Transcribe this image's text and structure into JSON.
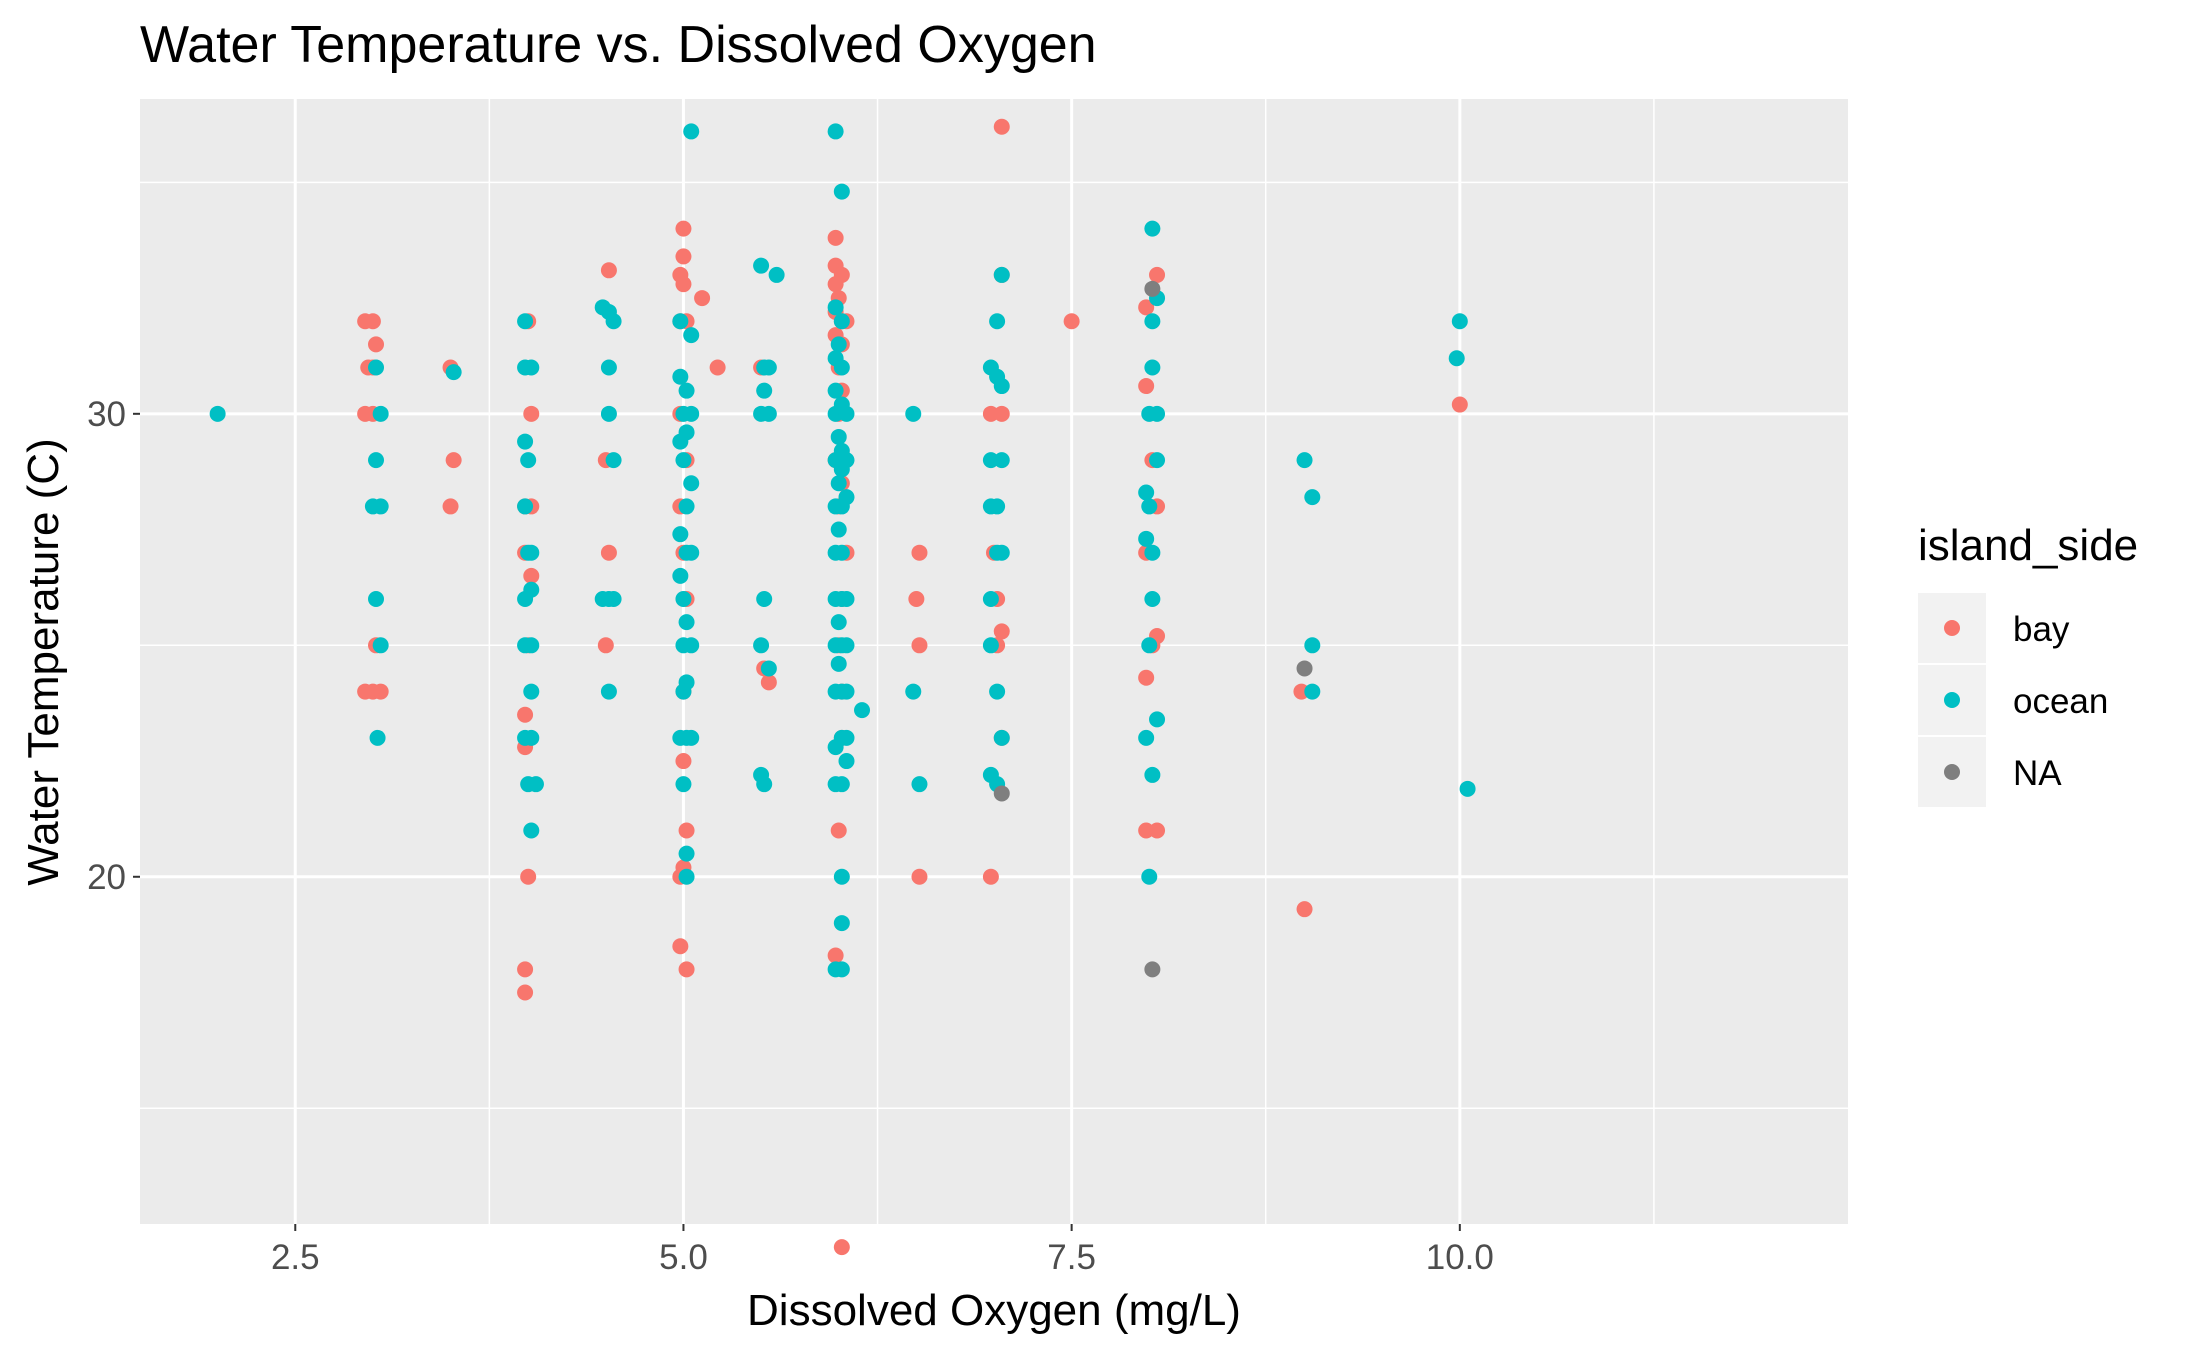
{
  "chart_data": {
    "type": "scatter",
    "title": "Water Temperature vs. Dissolved Oxygen",
    "xlabel": "Dissolved Oxygen (mg/L)",
    "ylabel": "Water Temperature (C)",
    "xlim": [
      1.5,
      12.5
    ],
    "ylim": [
      12.5,
      36.8
    ],
    "x_major_ticks": [
      2.5,
      5.0,
      7.5,
      10.0
    ],
    "x_tick_labels": [
      "2.5",
      "5.0",
      "7.5",
      "10.0"
    ],
    "x_minor_grid": [
      3.75,
      6.25,
      8.75,
      11.25
    ],
    "y_major_ticks": [
      20,
      30
    ],
    "y_tick_labels": [
      "20",
      "30"
    ],
    "y_minor_grid": [
      15,
      25,
      35
    ],
    "grid": true,
    "panel_background": "#ebebeb",
    "grid_color": "#ffffff",
    "legend": {
      "title": "island_side",
      "position": "right",
      "entries": [
        {
          "label": "bay",
          "color": "#F8766D"
        },
        {
          "label": "ocean",
          "color": "#00BFC4"
        },
        {
          "label": "NA",
          "color": "#7F7F7F"
        }
      ]
    },
    "series": [
      {
        "name": "bay",
        "color": "#F8766D",
        "points": [
          [
            2.95,
            32
          ],
          [
            3.0,
            32
          ],
          [
            3.02,
            31.5
          ],
          [
            2.97,
            31
          ],
          [
            3.0,
            31
          ],
          [
            2.95,
            30
          ],
          [
            3.0,
            30
          ],
          [
            3.02,
            25
          ],
          [
            2.95,
            24
          ],
          [
            3.0,
            24
          ],
          [
            3.05,
            24
          ],
          [
            3.5,
            31
          ],
          [
            3.52,
            29
          ],
          [
            3.5,
            28
          ],
          [
            4.0,
            32
          ],
          [
            4.02,
            30
          ],
          [
            3.98,
            28
          ],
          [
            4.02,
            28
          ],
          [
            3.98,
            27
          ],
          [
            4.02,
            26.5
          ],
          [
            4.0,
            25
          ],
          [
            3.98,
            23.5
          ],
          [
            3.98,
            22.8
          ],
          [
            4.0,
            20
          ],
          [
            3.98,
            18
          ],
          [
            3.98,
            17.5
          ],
          [
            4.52,
            33.1
          ],
          [
            4.5,
            29
          ],
          [
            4.52,
            27
          ],
          [
            4.5,
            25
          ],
          [
            5.0,
            34
          ],
          [
            5.0,
            33.4
          ],
          [
            4.98,
            33
          ],
          [
            5.0,
            32.8
          ],
          [
            4.98,
            32
          ],
          [
            5.02,
            32
          ],
          [
            5.12,
            32.5
          ],
          [
            5.22,
            31
          ],
          [
            4.98,
            30
          ],
          [
            5.02,
            29
          ],
          [
            4.98,
            28
          ],
          [
            5.0,
            27
          ],
          [
            5.02,
            26
          ],
          [
            5.0,
            24
          ],
          [
            5.0,
            22.5
          ],
          [
            5.02,
            21
          ],
          [
            5.0,
            20.2
          ],
          [
            4.98,
            20
          ],
          [
            4.98,
            18.5
          ],
          [
            5.02,
            18
          ],
          [
            5.5,
            31
          ],
          [
            5.52,
            24.5
          ],
          [
            5.55,
            24.2
          ],
          [
            5.98,
            33.8
          ],
          [
            5.98,
            33.2
          ],
          [
            6.02,
            33
          ],
          [
            5.98,
            32.8
          ],
          [
            6.0,
            32.5
          ],
          [
            5.98,
            32.2
          ],
          [
            6.02,
            32
          ],
          [
            6.05,
            32
          ],
          [
            5.98,
            31.7
          ],
          [
            6.02,
            31.5
          ],
          [
            6.0,
            31
          ],
          [
            6.02,
            30.5
          ],
          [
            6.0,
            30
          ],
          [
            5.98,
            29
          ],
          [
            6.02,
            28.5
          ],
          [
            6.0,
            28
          ],
          [
            6.05,
            27
          ],
          [
            6.02,
            26
          ],
          [
            6.0,
            25
          ],
          [
            6.02,
            24
          ],
          [
            6.02,
            23
          ],
          [
            6.0,
            21
          ],
          [
            5.98,
            18.3
          ],
          [
            6.02,
            12
          ],
          [
            6.52,
            27
          ],
          [
            6.5,
            26
          ],
          [
            6.52,
            25
          ],
          [
            6.52,
            20
          ],
          [
            7.05,
            36.2
          ],
          [
            7.05,
            33
          ],
          [
            6.98,
            30
          ],
          [
            7.05,
            30
          ],
          [
            7.0,
            27
          ],
          [
            7.02,
            26
          ],
          [
            7.05,
            25.3
          ],
          [
            7.02,
            25
          ],
          [
            7.05,
            23
          ],
          [
            6.98,
            20
          ],
          [
            7.5,
            32
          ],
          [
            7.98,
            32.3
          ],
          [
            8.05,
            33
          ],
          [
            7.98,
            30.6
          ],
          [
            8.02,
            29
          ],
          [
            8.05,
            28
          ],
          [
            7.98,
            27
          ],
          [
            8.05,
            25.2
          ],
          [
            8.02,
            25
          ],
          [
            7.98,
            24.3
          ],
          [
            7.98,
            21
          ],
          [
            8.05,
            21
          ],
          [
            8.98,
            24
          ],
          [
            9.0,
            19.3
          ],
          [
            10.0,
            30.2
          ]
        ]
      },
      {
        "name": "ocean",
        "color": "#00BFC4",
        "points": [
          [
            2.0,
            30
          ],
          [
            3.02,
            31
          ],
          [
            3.05,
            30
          ],
          [
            3.02,
            29
          ],
          [
            3.0,
            28
          ],
          [
            3.05,
            28
          ],
          [
            3.02,
            26
          ],
          [
            3.05,
            25
          ],
          [
            3.03,
            23
          ],
          [
            3.52,
            30.9
          ],
          [
            3.98,
            32
          ],
          [
            3.98,
            31
          ],
          [
            4.02,
            31
          ],
          [
            3.98,
            29.4
          ],
          [
            4.0,
            29
          ],
          [
            3.98,
            28
          ],
          [
            4.0,
            27
          ],
          [
            4.02,
            27
          ],
          [
            3.98,
            26
          ],
          [
            4.02,
            26.2
          ],
          [
            3.98,
            25
          ],
          [
            4.02,
            25
          ],
          [
            4.02,
            24
          ],
          [
            3.98,
            23
          ],
          [
            4.02,
            23
          ],
          [
            4.0,
            22
          ],
          [
            4.05,
            22
          ],
          [
            4.02,
            21
          ],
          [
            4.48,
            32.3
          ],
          [
            4.52,
            32.2
          ],
          [
            4.55,
            32
          ],
          [
            4.52,
            31
          ],
          [
            4.52,
            30
          ],
          [
            4.55,
            29
          ],
          [
            4.48,
            26
          ],
          [
            4.52,
            26
          ],
          [
            4.55,
            26
          ],
          [
            4.52,
            24
          ],
          [
            5.05,
            36.1
          ],
          [
            4.98,
            32
          ],
          [
            5.05,
            31.7
          ],
          [
            4.98,
            30.8
          ],
          [
            5.02,
            30.5
          ],
          [
            5.0,
            30
          ],
          [
            5.05,
            30
          ],
          [
            5.02,
            29.6
          ],
          [
            4.98,
            29.4
          ],
          [
            5.0,
            29
          ],
          [
            5.05,
            28.5
          ],
          [
            5.02,
            28
          ],
          [
            4.98,
            27.4
          ],
          [
            5.02,
            27
          ],
          [
            5.05,
            27
          ],
          [
            4.98,
            26.5
          ],
          [
            5.0,
            26
          ],
          [
            5.02,
            25.5
          ],
          [
            5.0,
            25
          ],
          [
            5.05,
            25
          ],
          [
            5.02,
            24.2
          ],
          [
            5.0,
            24
          ],
          [
            4.98,
            23
          ],
          [
            5.02,
            23
          ],
          [
            5.05,
            23
          ],
          [
            5.0,
            22
          ],
          [
            5.02,
            20.5
          ],
          [
            5.02,
            20
          ],
          [
            5.5,
            33.2
          ],
          [
            5.6,
            33
          ],
          [
            5.52,
            31
          ],
          [
            5.55,
            31
          ],
          [
            5.52,
            30.5
          ],
          [
            5.5,
            30
          ],
          [
            5.55,
            30
          ],
          [
            5.52,
            26
          ],
          [
            5.5,
            25
          ],
          [
            5.55,
            24.5
          ],
          [
            5.5,
            22.2
          ],
          [
            5.52,
            22
          ],
          [
            5.98,
            36.1
          ],
          [
            6.02,
            34.8
          ],
          [
            5.98,
            32.3
          ],
          [
            6.02,
            32
          ],
          [
            6.0,
            31.5
          ],
          [
            5.98,
            31.2
          ],
          [
            6.02,
            31
          ],
          [
            5.98,
            30.5
          ],
          [
            6.02,
            30.2
          ],
          [
            5.98,
            30
          ],
          [
            6.05,
            30
          ],
          [
            6.0,
            29.5
          ],
          [
            6.02,
            29.2
          ],
          [
            5.98,
            29
          ],
          [
            6.05,
            29
          ],
          [
            6.02,
            28.8
          ],
          [
            6.0,
            28.5
          ],
          [
            6.05,
            28.2
          ],
          [
            5.98,
            28
          ],
          [
            6.02,
            28
          ],
          [
            6.0,
            27.5
          ],
          [
            5.98,
            27
          ],
          [
            6.02,
            27
          ],
          [
            5.98,
            26
          ],
          [
            6.02,
            26
          ],
          [
            6.05,
            26
          ],
          [
            6.0,
            25.5
          ],
          [
            5.98,
            25
          ],
          [
            6.02,
            25
          ],
          [
            6.05,
            25
          ],
          [
            6.0,
            24.6
          ],
          [
            5.98,
            24
          ],
          [
            6.02,
            24
          ],
          [
            6.05,
            24
          ],
          [
            6.02,
            23
          ],
          [
            6.05,
            23
          ],
          [
            5.98,
            22.8
          ],
          [
            6.05,
            22.5
          ],
          [
            5.98,
            22
          ],
          [
            6.02,
            22
          ],
          [
            6.02,
            20
          ],
          [
            6.02,
            19
          ],
          [
            5.98,
            18
          ],
          [
            6.02,
            18
          ],
          [
            6.15,
            23.6
          ],
          [
            6.48,
            30
          ],
          [
            6.52,
            22
          ],
          [
            6.48,
            24
          ],
          [
            7.05,
            33
          ],
          [
            7.02,
            32
          ],
          [
            6.98,
            31
          ],
          [
            7.02,
            30.8
          ],
          [
            7.05,
            30.6
          ],
          [
            6.98,
            29
          ],
          [
            7.05,
            29
          ],
          [
            6.98,
            28
          ],
          [
            7.02,
            28
          ],
          [
            7.02,
            27
          ],
          [
            7.05,
            27
          ],
          [
            6.98,
            26
          ],
          [
            6.98,
            25
          ],
          [
            7.02,
            24
          ],
          [
            7.05,
            23
          ],
          [
            6.98,
            22.2
          ],
          [
            7.02,
            22
          ],
          [
            8.02,
            34
          ],
          [
            8.05,
            32.5
          ],
          [
            8.02,
            32
          ],
          [
            8.02,
            31
          ],
          [
            8.0,
            30
          ],
          [
            8.05,
            30
          ],
          [
            8.05,
            29
          ],
          [
            7.98,
            28.3
          ],
          [
            8.0,
            28
          ],
          [
            7.98,
            27.3
          ],
          [
            8.02,
            27
          ],
          [
            8.02,
            26
          ],
          [
            8.0,
            25
          ],
          [
            8.05,
            23.4
          ],
          [
            7.98,
            23
          ],
          [
            8.02,
            22.2
          ],
          [
            8.0,
            20
          ],
          [
            9.0,
            29
          ],
          [
            9.05,
            28.2
          ],
          [
            9.05,
            25
          ],
          [
            9.05,
            24
          ],
          [
            10.0,
            32
          ],
          [
            9.98,
            31.2
          ],
          [
            10.05,
            21.9
          ]
        ]
      },
      {
        "name": "NA",
        "color": "#7F7F7F",
        "points": [
          [
            8.02,
            32.7
          ],
          [
            9.0,
            24.5
          ],
          [
            7.05,
            21.8
          ],
          [
            8.02,
            18
          ]
        ]
      }
    ]
  }
}
